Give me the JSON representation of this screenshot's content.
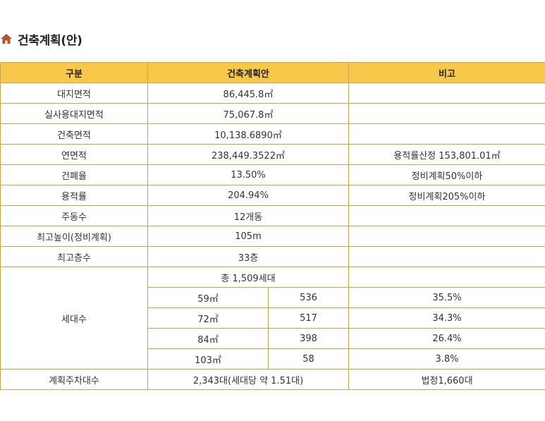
{
  "title": "건축계획(안)",
  "header": {
    "col1": "구분",
    "col2": "건축계획안",
    "col3": "비고"
  },
  "rows": [
    {
      "label": "대지면적",
      "value": "86,445.8㎡",
      "note": ""
    },
    {
      "label": "실사용대지면적",
      "value": "75,067.8㎡",
      "note": ""
    },
    {
      "label": "건축면적",
      "value": "10,138.6890㎡",
      "note": ""
    },
    {
      "label": "연면적",
      "value": "238,449.3522㎡",
      "note": "용적률산정 153,801.01㎡"
    },
    {
      "label": "건폐율",
      "value": "13.50%",
      "note": "정비계획50%이하"
    },
    {
      "label": "용적률",
      "value": "204.94%",
      "note": "정비계획205%이하"
    },
    {
      "label": "주동수",
      "value": "12개동",
      "note": ""
    },
    {
      "label": "최고높이(정비계획)",
      "value": "105m",
      "note": ""
    },
    {
      "label": "최고층수",
      "value": "33층",
      "note": ""
    }
  ],
  "households": {
    "label": "세대수",
    "total": "총 1,509세대",
    "types": [
      {
        "size": "59㎡",
        "count": "536",
        "ratio": "35.5%"
      },
      {
        "size": "72㎡",
        "count": "517",
        "ratio": "34.3%"
      },
      {
        "size": "84㎡",
        "count": "398",
        "ratio": "26.4%"
      },
      {
        "size": "103㎡",
        "count": "58",
        "ratio": "3.8%"
      }
    ]
  },
  "parking": {
    "label": "계획주차대수",
    "value": "2,343대(세대당 약 1.51대)",
    "note": "법정1,660대"
  },
  "colors": {
    "header_bg": "#f7c84a",
    "border": "#c9a24f",
    "icon": "#b5532e"
  },
  "icon": "house-icon"
}
